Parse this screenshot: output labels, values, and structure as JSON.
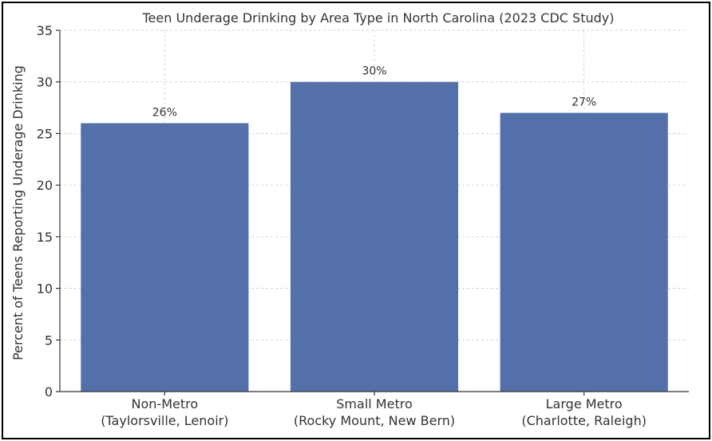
{
  "chart_data": {
    "type": "bar",
    "title": "Teen Underage Drinking by Area Type in North Carolina (2023 CDC Study)",
    "ylabel": "Percent of Teens Reporting Underage Drinking",
    "xlabel": "",
    "categories": [
      [
        "Non-Metro",
        "(Taylorsville, Lenoir)"
      ],
      [
        "Small Metro",
        "(Rocky Mount, New Bern)"
      ],
      [
        "Large Metro",
        "(Charlotte, Raleigh)"
      ]
    ],
    "values": [
      26,
      30,
      27
    ],
    "data_labels": [
      "26%",
      "30%",
      "27%"
    ],
    "ylim": [
      0,
      35
    ],
    "yticks": [
      0,
      5,
      10,
      15,
      20,
      25,
      30,
      35
    ],
    "grid": true,
    "bar_color": "#5470aa"
  }
}
